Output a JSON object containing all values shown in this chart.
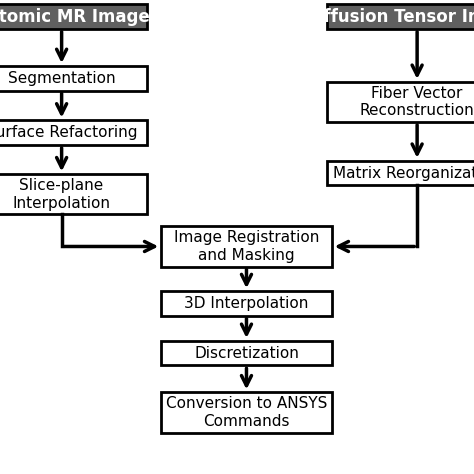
{
  "background_color": "#ffffff",
  "header_left": "Anatomic MR Images",
  "header_right": "Diffusion Tensor Images",
  "header_bg": "#606060",
  "header_text_color": "#ffffff",
  "box_bg": "#ffffff",
  "box_edge": "#000000",
  "left_boxes": [
    "Segmentation",
    "Surface Refactoring",
    "Slice-plane\nInterpolation"
  ],
  "right_boxes": [
    "Fiber Vector\nReconstruction",
    "Matrix Reorganization"
  ],
  "center_boxes": [
    "Image Registration\nand Masking",
    "3D Interpolation",
    "Discretization",
    "Conversion to ANSYS\nCommands"
  ],
  "arrow_color": "#000000",
  "font_size": 11,
  "header_font_size": 12
}
